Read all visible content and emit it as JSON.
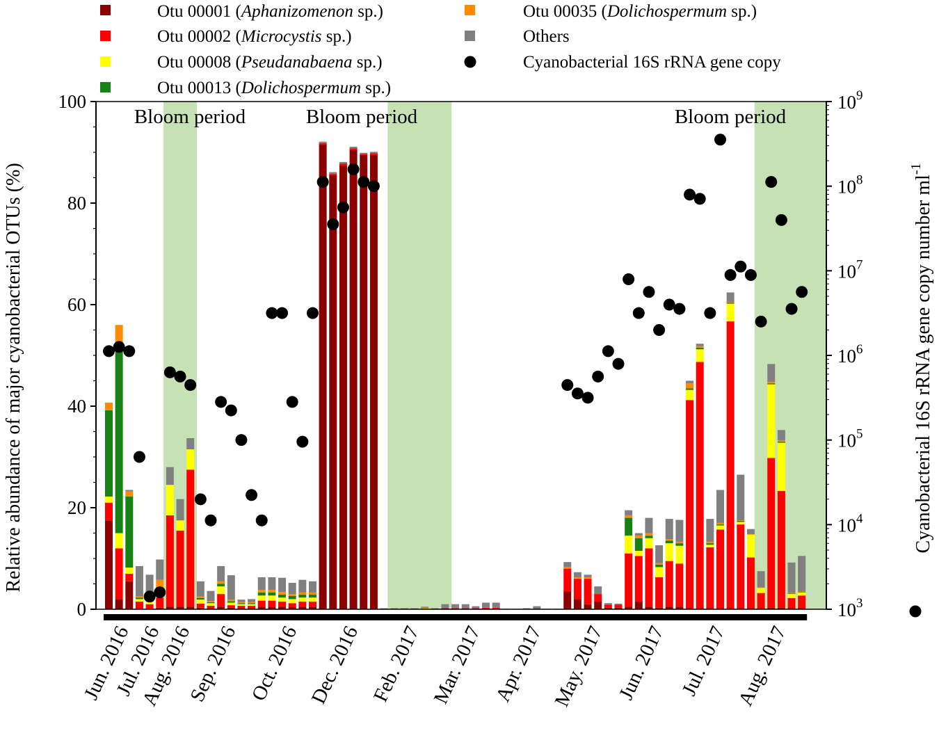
{
  "chart_data": {
    "type": "stacked bar + scatter (dual axis)",
    "ylabel_left": "Relative abundance of major cyanobacterial OTUs (%)",
    "ylabel_right": "Cyanobacterial 16S rRNA gene copy number ml",
    "ylabel_right_sup": "-1",
    "ylim_left": [
      0,
      100
    ],
    "ylim_right_log10": [
      3,
      9
    ],
    "yticks_left": [
      "0",
      "20",
      "40",
      "60",
      "80",
      "100"
    ],
    "yticks_right": [
      {
        "base": "10",
        "exp": "3"
      },
      {
        "base": "10",
        "exp": "4"
      },
      {
        "base": "10",
        "exp": "5"
      },
      {
        "base": "10",
        "exp": "6"
      },
      {
        "base": "10",
        "exp": "7"
      },
      {
        "base": "10",
        "exp": "8"
      },
      {
        "base": "10",
        "exp": "9"
      }
    ],
    "legend": [
      {
        "key": "otu1",
        "pre": "Otu 00001 (",
        "italic": "Aphanizomenon",
        "post": " sp.)",
        "color": "#8B0000",
        "marker": "square"
      },
      {
        "key": "otu2",
        "pre": "Otu 00002 (",
        "italic": "Microcystis",
        "post": " sp.)",
        "color": "#FF0000",
        "marker": "square"
      },
      {
        "key": "otu8",
        "pre": "Otu 00008 (",
        "italic": "Pseudanabaena",
        "post": " sp.)",
        "color": "#FFFF00",
        "marker": "square"
      },
      {
        "key": "otu13",
        "pre": "Otu 00013 (",
        "italic": "Dolichospermum",
        "post": " sp.)",
        "color": "#168216",
        "marker": "square"
      },
      {
        "key": "otu35",
        "pre": "Otu 00035 (",
        "italic": "Dolichospermum",
        "post": " sp.)",
        "color": "#FF8C00",
        "marker": "square"
      },
      {
        "key": "others",
        "pre": "Others",
        "italic": "",
        "post": "",
        "color": "#808080",
        "marker": "square"
      },
      {
        "key": "copy",
        "pre": "Cyanobacterial 16S rRNA gene copy",
        "italic": "",
        "post": "",
        "color": "#000000",
        "marker": "circle"
      }
    ],
    "bloom_periods": [
      {
        "label": "Bloom period",
        "from_sample": 6,
        "to_sample": 8
      },
      {
        "label": "Bloom period",
        "from_sample": 28,
        "to_sample": 33
      },
      {
        "label": "Bloom period",
        "from_sample": 64,
        "to_sample": 85
      }
    ],
    "extra_labels": [
      {
        "text": "Bloom period",
        "near_sample": 1
      }
    ],
    "months": [
      {
        "label": "Jun. 2016",
        "from": 0,
        "to": 2
      },
      {
        "label": "Jul. 2016",
        "from": 3,
        "to": 5
      },
      {
        "label": "Aug. 2016",
        "from": 6,
        "to": 8
      },
      {
        "label": "Sep. 2016",
        "from": 9,
        "to": 14
      },
      {
        "label": "Oct. 2016",
        "from": 15,
        "to": 20
      },
      {
        "label": "Dec. 2016",
        "from": 21,
        "to": 26
      },
      {
        "label": "Feb. 2017",
        "from": 27,
        "to": 32
      },
      {
        "label": "Mar. 2017",
        "from": 33,
        "to": 38
      },
      {
        "label": "Apr. 2017",
        "from": 39,
        "to": 44
      },
      {
        "label": "May. 2017",
        "from": 45,
        "to": 50
      },
      {
        "label": "Jun. 2017",
        "from": 51,
        "to": 56
      },
      {
        "label": "Jul. 2017",
        "from": 57,
        "to": 62
      },
      {
        "label": "Aug. 2017",
        "from": 63,
        "to": 68
      }
    ],
    "series_order": [
      "otu1",
      "otu2",
      "otu8",
      "otu13",
      "otu35",
      "others"
    ],
    "bars": [
      [
        17.5,
        3.5,
        1.2,
        17,
        1.5,
        0
      ],
      [
        2,
        10,
        3,
        36,
        5,
        0
      ],
      [
        5.5,
        1.5,
        1.2,
        14,
        1,
        0.3
      ],
      [
        0,
        1.5,
        0.5,
        0.3,
        0.2,
        6
      ],
      [
        0,
        1,
        0.5,
        0.3,
        0.2,
        4.8
      ],
      [
        0.3,
        2,
        1,
        1,
        1.5,
        4
      ],
      [
        0.5,
        18,
        6,
        0,
        0,
        3.5
      ],
      [
        0.5,
        15,
        2,
        0,
        0,
        4.2
      ],
      [
        0.5,
        27,
        4,
        0,
        0,
        2.2
      ],
      [
        0.3,
        0.8,
        0.8,
        0.3,
        0.3,
        3
      ],
      [
        0.2,
        0.5,
        0.5,
        0.2,
        0.2,
        2
      ],
      [
        0.5,
        2.5,
        1.5,
        0.5,
        0.5,
        3
      ],
      [
        0.3,
        0.5,
        0.5,
        0.3,
        0.3,
        4.8
      ],
      [
        0.2,
        0.5,
        0.3,
        0.2,
        0.2,
        0.5
      ],
      [
        0.2,
        0.5,
        0.3,
        0.2,
        0.2,
        0.6
      ],
      [
        0.5,
        1.2,
        1,
        0.6,
        0.5,
        2.5
      ],
      [
        0.5,
        1.2,
        1,
        0.6,
        0.5,
        2.5
      ],
      [
        0.5,
        1,
        0.8,
        0.6,
        0.5,
        2.8
      ],
      [
        0.4,
        0.8,
        0.8,
        0.6,
        0.4,
        2.2
      ],
      [
        0.5,
        1,
        0.8,
        0.6,
        0.4,
        2.5
      ],
      [
        0.5,
        1,
        0.8,
        0.6,
        0.4,
        2.2
      ],
      [
        91.5,
        0.3,
        0,
        0,
        0,
        0.3
      ],
      [
        85.5,
        0.3,
        0,
        0,
        0,
        0.3
      ],
      [
        87.5,
        0.3,
        0,
        0,
        0,
        0.3
      ],
      [
        90.5,
        0.3,
        0,
        0,
        0,
        0.3
      ],
      [
        89.5,
        0.2,
        0,
        0,
        0,
        0.2
      ],
      [
        89.5,
        0.3,
        0,
        0,
        0,
        0.3
      ],
      [
        0,
        0,
        0,
        0,
        0,
        0.2
      ],
      [
        0,
        0,
        0,
        0,
        0,
        0.2
      ],
      [
        0,
        0,
        0,
        0,
        0,
        0.2
      ],
      [
        0,
        0,
        0,
        0,
        0,
        0.2
      ],
      [
        0,
        0,
        0,
        0,
        0.3,
        0.2
      ],
      [
        0,
        0,
        0,
        0,
        0,
        0.2
      ],
      [
        0,
        0.2,
        0,
        0,
        0,
        0.8
      ],
      [
        0,
        0.2,
        0,
        0,
        0,
        0.8
      ],
      [
        0,
        0.2,
        0,
        0,
        0,
        0.8
      ],
      [
        0,
        0.2,
        0,
        0,
        0,
        0.4
      ],
      [
        0,
        0.3,
        0,
        0,
        0,
        1
      ],
      [
        0,
        0.3,
        0,
        0,
        0,
        1
      ],
      [
        0,
        0,
        0,
        0,
        0,
        0.1
      ],
      [
        0,
        0,
        0,
        0,
        0,
        0.1
      ],
      [
        0,
        0,
        0,
        0,
        0,
        0.2
      ],
      [
        0,
        0,
        0,
        0,
        0,
        0.6
      ],
      [
        0,
        0,
        0,
        0,
        0,
        0.1
      ],
      [
        0,
        0,
        0,
        0,
        0,
        0.1
      ],
      [
        3.5,
        4.5,
        0,
        0,
        0.3,
        1
      ],
      [
        2,
        4,
        0,
        0,
        0.3,
        1
      ],
      [
        1,
        5,
        0,
        0,
        0.3,
        0.5
      ],
      [
        1.5,
        1.5,
        0,
        0,
        0,
        1.5
      ],
      [
        0.3,
        0.6,
        0,
        0,
        0,
        0.3
      ],
      [
        0.3,
        0.6,
        0,
        0,
        0,
        0.2
      ],
      [
        0.5,
        10.5,
        3.5,
        3.5,
        0.5,
        1
      ],
      [
        1.5,
        9,
        1,
        2.5,
        0.5,
        0.5
      ],
      [
        0.5,
        11.5,
        2,
        0.5,
        0.5,
        3
      ],
      [
        0.3,
        6,
        2,
        0.5,
        0.3,
        3.5
      ],
      [
        0.5,
        9,
        3.5,
        0.5,
        0.3,
        4
      ],
      [
        0.5,
        8.5,
        3.5,
        0.5,
        0.3,
        4.3
      ],
      [
        0.2,
        41,
        2,
        0.3,
        1,
        0.5
      ],
      [
        0.2,
        48.5,
        2.5,
        0.3,
        0.3,
        0.5
      ],
      [
        0.2,
        12,
        0.5,
        0.3,
        0.3,
        4.5
      ],
      [
        0.2,
        15.5,
        0.8,
        0.2,
        0.3,
        6.5
      ],
      [
        0.2,
        56.5,
        3.5,
        0.2,
        0.1,
        1.9
      ],
      [
        0.2,
        16.5,
        0.5,
        0.2,
        0.1,
        9
      ],
      [
        0.2,
        10,
        4.5,
        0,
        0.1,
        1
      ],
      [
        0.2,
        3,
        1,
        0,
        0.1,
        3.2
      ],
      [
        0.3,
        29.5,
        14.5,
        0.2,
        0.3,
        3.5
      ],
      [
        0.3,
        23,
        9.5,
        0.2,
        0.3,
        2
      ],
      [
        0.2,
        2,
        0.8,
        0.1,
        0.1,
        6
      ],
      [
        0.2,
        2.5,
        0.6,
        0.1,
        0.1,
        7
      ]
    ],
    "gene_copy_log10": [
      6.05,
      6.1,
      6.05,
      4.8,
      3.15,
      3.2,
      5.8,
      5.75,
      5.65,
      4.3,
      4.05,
      5.45,
      5.35,
      5.0,
      4.35,
      4.05,
      6.5,
      6.5,
      5.45,
      4.98,
      6.5,
      8.05,
      7.55,
      7.75,
      8.2,
      8.05,
      8.0,
      5.65,
      5.55,
      5.5,
      5.75,
      6.05,
      5.9,
      6.9,
      6.5,
      6.75,
      6.3,
      6.6,
      6.55,
      7.9,
      7.85,
      6.5,
      8.55,
      6.95,
      7.05,
      6.95,
      6.4,
      8.05,
      7.6,
      6.55,
      6.75
    ],
    "gene_copy_sample_index": [
      0,
      1,
      2,
      3,
      4,
      5,
      6,
      7,
      8,
      9,
      10,
      11,
      12,
      13,
      14,
      15,
      16,
      17,
      18,
      19,
      20,
      21,
      22,
      23,
      24,
      25,
      26,
      45,
      46,
      47,
      48,
      49,
      50,
      51,
      52,
      53,
      54,
      55,
      56,
      57,
      58,
      59,
      60,
      61,
      62,
      63,
      64,
      65,
      66,
      67,
      68
    ]
  }
}
